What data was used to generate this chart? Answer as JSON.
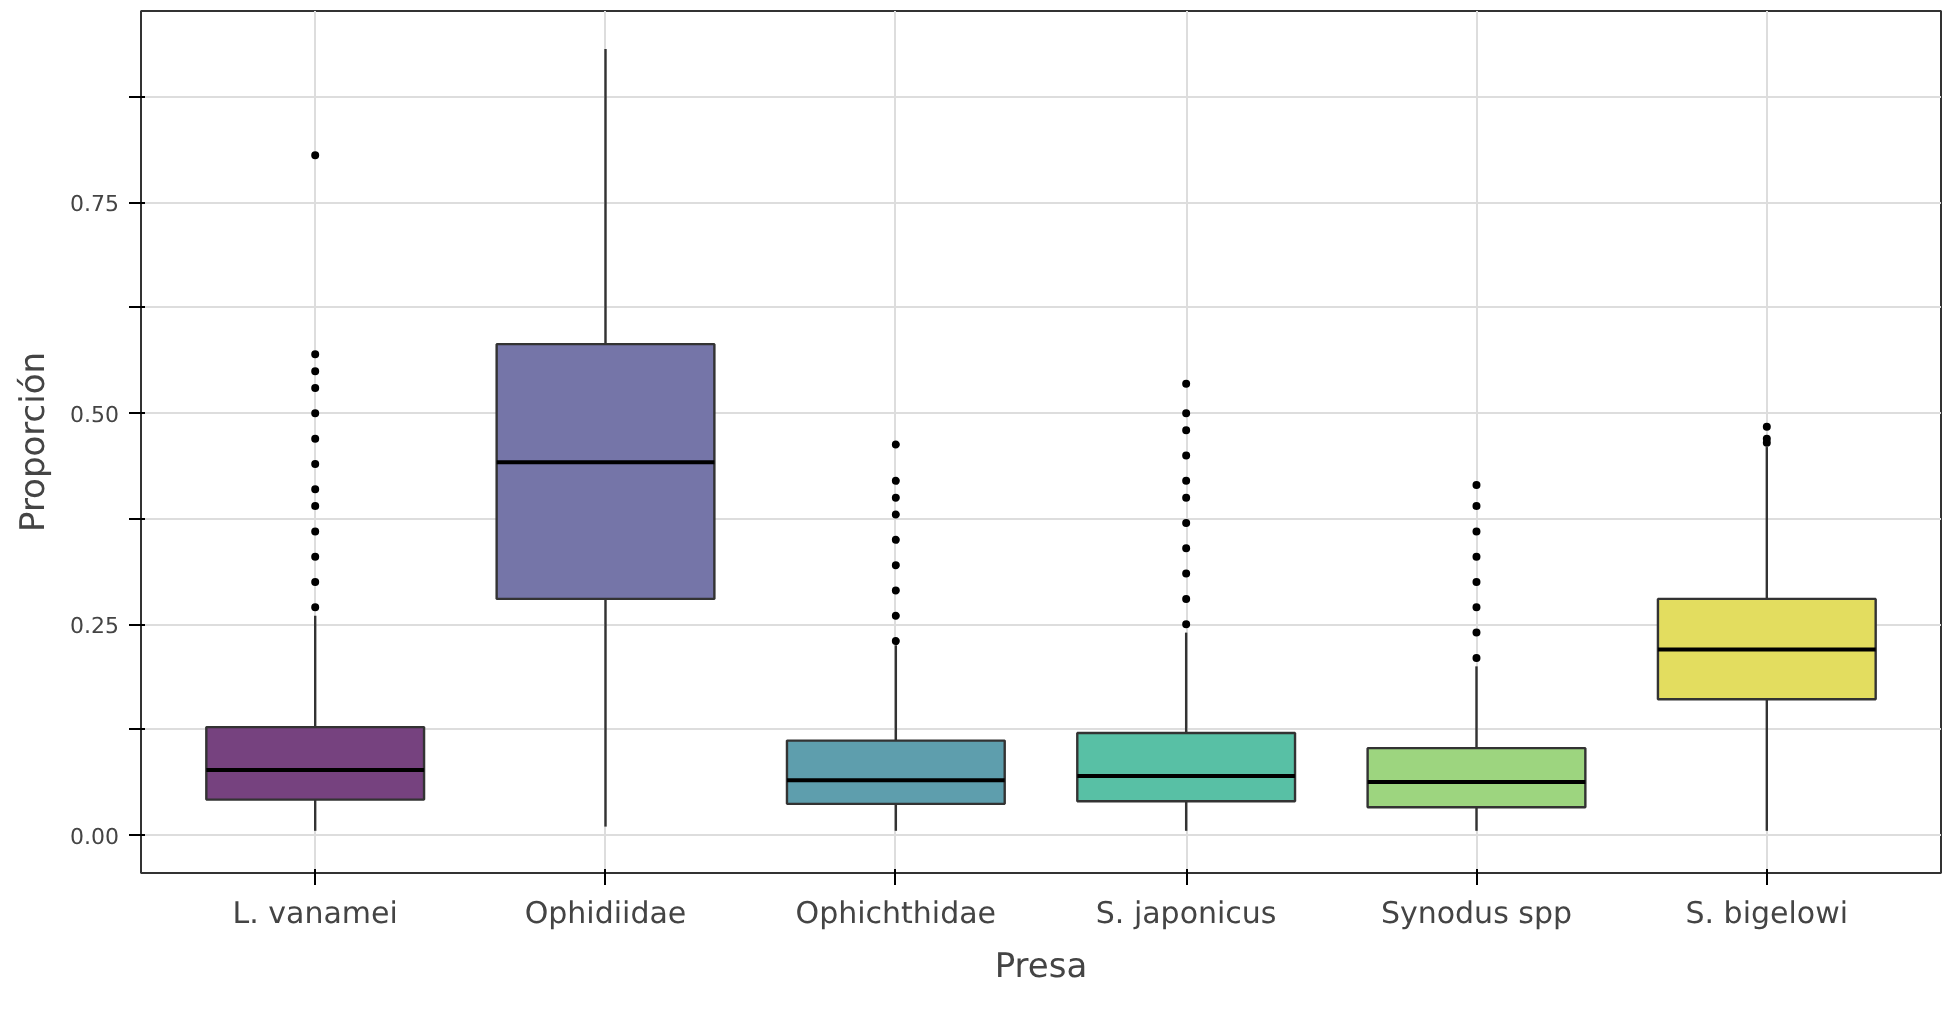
{
  "chart_data": {
    "type": "box",
    "xlabel": "Presa",
    "ylabel": "Proporción",
    "categories": [
      "L. vanamei",
      "Ophidiidae",
      "Ophichthidae",
      "S. japonicus",
      "Synodus spp",
      "S. bigelowi"
    ],
    "colors": [
      "#76427f",
      "#7575a8",
      "#5e9ead",
      "#58c0a5",
      "#9dd57f",
      "#e3dd5f"
    ],
    "boxes": [
      {
        "low": 0.005,
        "q1": 0.042,
        "median": 0.077,
        "q3": 0.128,
        "high": 0.26,
        "outliers": [
          0.27,
          0.3,
          0.33,
          0.36,
          0.39,
          0.41,
          0.44,
          0.47,
          0.5,
          0.53,
          0.55,
          0.57,
          0.806
        ]
      },
      {
        "low": 0.01,
        "q1": 0.28,
        "median": 0.442,
        "q3": 0.582,
        "high": 0.932
      },
      {
        "low": 0.005,
        "q1": 0.037,
        "median": 0.065,
        "q3": 0.112,
        "high": 0.225,
        "outliers": [
          0.23,
          0.26,
          0.29,
          0.32,
          0.35,
          0.38,
          0.4,
          0.42,
          0.463
        ]
      },
      {
        "low": 0.005,
        "q1": 0.04,
        "median": 0.07,
        "q3": 0.121,
        "high": 0.24,
        "outliers": [
          0.25,
          0.28,
          0.31,
          0.34,
          0.37,
          0.4,
          0.42,
          0.45,
          0.48,
          0.5,
          0.535
        ]
      },
      {
        "low": 0.005,
        "q1": 0.033,
        "median": 0.063,
        "q3": 0.103,
        "high": 0.2,
        "outliers": [
          0.21,
          0.24,
          0.27,
          0.3,
          0.33,
          0.36,
          0.39,
          0.415
        ]
      },
      {
        "low": 0.005,
        "q1": 0.161,
        "median": 0.22,
        "q3": 0.28,
        "high": 0.46,
        "outliers": [
          0.465,
          0.47,
          0.484
        ]
      }
    ],
    "ylim": [
      -0.045,
      0.977
    ],
    "yticks": [
      "0.00",
      {
        "value": 0.125,
        "label": null
      },
      {
        "value": 0.25,
        "label": "0.25"
      },
      {
        "value": 0.375,
        "label": null
      },
      {
        "value": 0.5,
        "label": "0.50"
      },
      {
        "value": 0.625,
        "label": null
      },
      {
        "value": 0.75,
        "label": "0.75"
      },
      {
        "value": 0.875,
        "label": null
      }
    ],
    "grid": true
  }
}
